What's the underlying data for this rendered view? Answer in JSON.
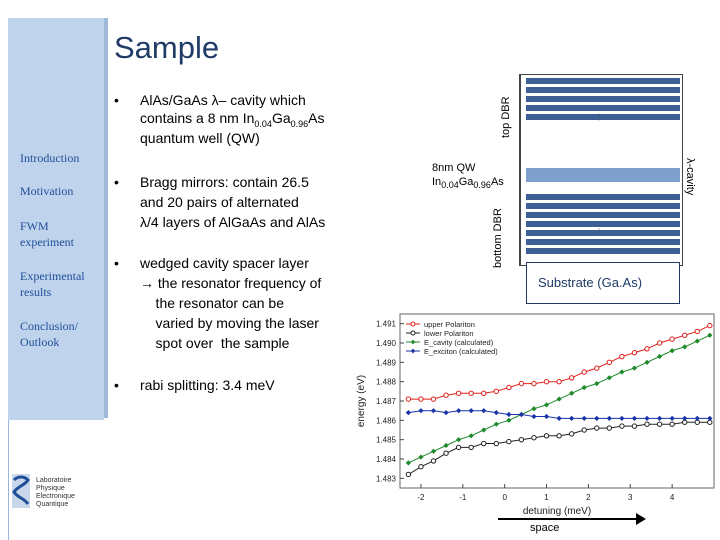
{
  "slide": {
    "title": "Sample"
  },
  "sidebar": {
    "items": [
      {
        "label": "Introduction"
      },
      {
        "label": "Motivation"
      },
      {
        "label": "FWM experiment"
      },
      {
        "label": "Experimental results"
      },
      {
        "label": "Conclusion/ Outlook"
      }
    ]
  },
  "bullets": [
    {
      "line1_a": "AlAs/GaAs  λ– cavity  which",
      "line2_pre": "contains a 8 nm  In",
      "sub1": "0.04",
      "mid": "Ga",
      "sub2": "0.96",
      "post": "As",
      "line3": "quantum well (QW)"
    },
    {
      "line1": " Bragg mirrors: contain 26.5",
      "line2": "and 20 pairs of alternated",
      "line3": "λ/4 layers of AlGaAs and AlAs"
    },
    {
      "line1": "wedged cavity spacer layer",
      "line2": "→ the resonator frequency of",
      "line3": "    the resonator can be",
      "line4": "    varied by moving the laser",
      "line5": "    spot over  the sample"
    },
    {
      "line1": " rabi splitting: 3.4 meV"
    }
  ],
  "diagram": {
    "top_dbr": "top DBR",
    "bottom_dbr": "bottom DBR",
    "lambda_cavity": "λ-cavity",
    "qw_line1": "8nm QW",
    "qw_pre": "In",
    "qw_sub1": "0.04",
    "qw_mid": "Ga",
    "qw_sub2": "0.96",
    "qw_post": "As",
    "substrate": "Substrate (Ga.As)",
    "dots": "…"
  },
  "logo": {
    "lines": [
      "Laboratoire",
      "Physique",
      "Electronique",
      "Quantique"
    ]
  },
  "chart_data": {
    "type": "line",
    "xlabel": "detuning (meV)",
    "ylabel": "energy (eV)",
    "xlim": [
      -2.5,
      5.0
    ],
    "ylim": [
      1.4825,
      1.4915
    ],
    "xticks": [
      "-2",
      "-1",
      "0",
      "1",
      "2",
      "3",
      "4"
    ],
    "yticks": [
      "1.483",
      "1.484",
      "1.485",
      "1.486",
      "1.487",
      "1.488",
      "1.489",
      "1.490",
      "1.491"
    ],
    "extra_label": "space",
    "legend_position": "top-left",
    "series": [
      {
        "name": "upper Polariton",
        "color": "#e0201b",
        "marker": "circle-open",
        "x": [
          -2.3,
          -2.0,
          -1.7,
          -1.4,
          -1.1,
          -0.8,
          -0.5,
          -0.2,
          0.1,
          0.4,
          0.7,
          1.0,
          1.3,
          1.6,
          1.9,
          2.2,
          2.5,
          2.8,
          3.1,
          3.4,
          3.7,
          4.0,
          4.3,
          4.6,
          4.9
        ],
        "y": [
          1.4871,
          1.4871,
          1.4871,
          1.4873,
          1.4874,
          1.4874,
          1.4874,
          1.4875,
          1.4877,
          1.4879,
          1.4879,
          1.488,
          1.488,
          1.4882,
          1.4885,
          1.4887,
          1.489,
          1.4893,
          1.4895,
          1.4897,
          1.49,
          1.4902,
          1.4904,
          1.4906,
          1.4909
        ]
      },
      {
        "name": "lower Polariton",
        "color": "#222222",
        "marker": "circle-open",
        "x": [
          -2.3,
          -2.0,
          -1.7,
          -1.4,
          -1.1,
          -0.8,
          -0.5,
          -0.2,
          0.1,
          0.4,
          0.7,
          1.0,
          1.3,
          1.6,
          1.9,
          2.2,
          2.5,
          2.8,
          3.1,
          3.4,
          3.7,
          4.0,
          4.3,
          4.6,
          4.9
        ],
        "y": [
          1.4832,
          1.4836,
          1.4839,
          1.4843,
          1.4846,
          1.4846,
          1.4848,
          1.4848,
          1.4849,
          1.485,
          1.4851,
          1.4852,
          1.4852,
          1.4853,
          1.4855,
          1.4856,
          1.4856,
          1.4857,
          1.4857,
          1.4858,
          1.4858,
          1.4858,
          1.4859,
          1.4859,
          1.4859
        ]
      },
      {
        "name": "E_cavity (calculated)",
        "color": "#1e8a2a",
        "marker": "diamond-filled",
        "x": [
          -2.3,
          -2.0,
          -1.7,
          -1.4,
          -1.1,
          -0.8,
          -0.5,
          -0.2,
          0.1,
          0.4,
          0.7,
          1.0,
          1.3,
          1.6,
          1.9,
          2.2,
          2.5,
          2.8,
          3.1,
          3.4,
          3.7,
          4.0,
          4.3,
          4.6,
          4.9
        ],
        "y": [
          1.4838,
          1.4841,
          1.4844,
          1.4847,
          1.485,
          1.4852,
          1.4855,
          1.4858,
          1.486,
          1.4863,
          1.4866,
          1.4868,
          1.4871,
          1.4874,
          1.4877,
          1.4879,
          1.4882,
          1.4885,
          1.4887,
          1.489,
          1.4893,
          1.4896,
          1.4898,
          1.4901,
          1.4904
        ]
      },
      {
        "name": "E_exciton (calculated)",
        "color": "#1a34a8",
        "marker": "diamond-filled",
        "x": [
          -2.3,
          -2.0,
          -1.7,
          -1.4,
          -1.1,
          -0.8,
          -0.5,
          -0.2,
          0.1,
          0.4,
          0.7,
          1.0,
          1.3,
          1.6,
          1.9,
          2.2,
          2.5,
          2.8,
          3.1,
          3.4,
          3.7,
          4.0,
          4.3,
          4.6,
          4.9
        ],
        "y": [
          1.4864,
          1.4865,
          1.4865,
          1.4864,
          1.4865,
          1.4865,
          1.4865,
          1.4864,
          1.4863,
          1.4863,
          1.4862,
          1.4862,
          1.4861,
          1.4861,
          1.4861,
          1.4861,
          1.4861,
          1.4861,
          1.4861,
          1.4861,
          1.4861,
          1.4861,
          1.4861,
          1.4861,
          1.4861
        ]
      }
    ]
  }
}
